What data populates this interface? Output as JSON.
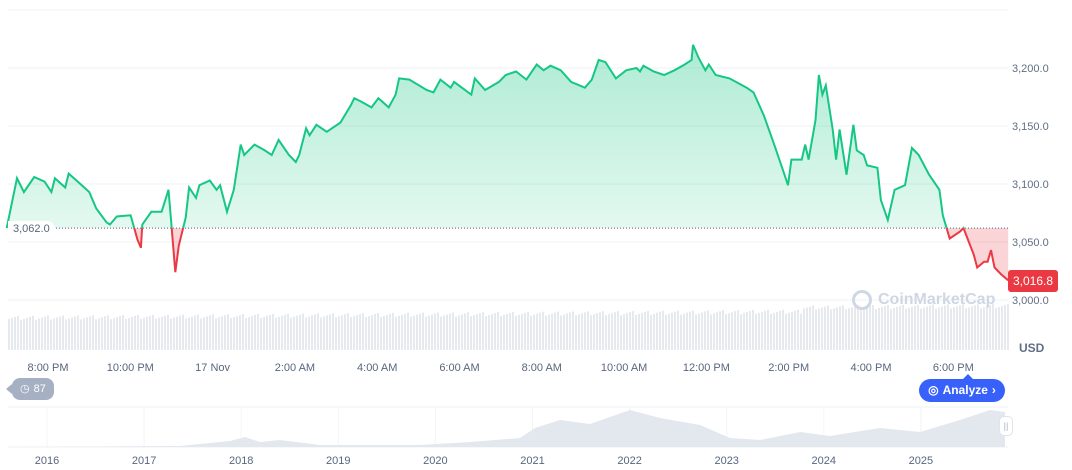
{
  "chart_data": {
    "type": "area",
    "currency": "USD",
    "baseline": 3062.0,
    "baseline_label": "3,062.0",
    "current_price_label": "3,016.8",
    "ylim": [
      3000,
      3225
    ],
    "y_ticks": [
      "3,000.0",
      "3,050.0",
      "3,100.0",
      "3,150.0",
      "3,200.0"
    ],
    "x_ticks": [
      "8:00 PM",
      "10:00 PM",
      "17 Nov",
      "2:00 AM",
      "4:00 AM",
      "6:00 AM",
      "8:00 AM",
      "10:00 AM",
      "12:00 PM",
      "2:00 PM",
      "4:00 PM",
      "6:00 PM"
    ],
    "grid": true,
    "colors": {
      "up": "#16c784",
      "down": "#ea3943",
      "accent": "#3861fb"
    },
    "series": [
      {
        "points": [
          [
            "19:00",
            3062
          ],
          [
            "19:15",
            3105
          ],
          [
            "19:25",
            3093
          ],
          [
            "19:40",
            3106
          ],
          [
            "19:55",
            3102
          ],
          [
            "20:05",
            3093
          ],
          [
            "20:10",
            3105
          ],
          [
            "20:25",
            3097
          ],
          [
            "20:30",
            3109
          ],
          [
            "20:45",
            3101
          ],
          [
            "21:00",
            3093
          ],
          [
            "21:10",
            3079
          ],
          [
            "21:25",
            3067
          ],
          [
            "21:30",
            3065
          ],
          [
            "21:40",
            3072
          ],
          [
            "22:00",
            3073
          ],
          [
            "22:10",
            3052
          ],
          [
            "22:15",
            3045
          ],
          [
            "22:17",
            3065
          ],
          [
            "22:30",
            3076
          ],
          [
            "22:45",
            3076
          ],
          [
            "22:55",
            3095
          ],
          [
            "23:00",
            3060
          ],
          [
            "23:05",
            3024
          ],
          [
            "23:10",
            3047
          ],
          [
            "23:20",
            3071
          ],
          [
            "23:25",
            3097
          ],
          [
            "23:35",
            3088
          ],
          [
            "23:40",
            3099
          ],
          [
            "23:55",
            3103
          ],
          [
            "00:05",
            3095
          ],
          [
            "00:10",
            3099
          ],
          [
            "00:20",
            3076
          ],
          [
            "00:30",
            3095
          ],
          [
            "00:40",
            3134
          ],
          [
            "00:45",
            3125
          ],
          [
            "01:00",
            3134
          ],
          [
            "01:15",
            3129
          ],
          [
            "01:25",
            3125
          ],
          [
            "01:35",
            3138
          ],
          [
            "01:50",
            3125
          ],
          [
            "02:00",
            3119
          ],
          [
            "02:05",
            3125
          ],
          [
            "02:15",
            3148
          ],
          [
            "02:20",
            3142
          ],
          [
            "02:30",
            3151
          ],
          [
            "02:45",
            3145
          ],
          [
            "03:05",
            3153
          ],
          [
            "03:20",
            3168
          ],
          [
            "03:25",
            3174
          ],
          [
            "03:35",
            3171
          ],
          [
            "03:50",
            3166
          ],
          [
            "04:00",
            3174
          ],
          [
            "04:15",
            3166
          ],
          [
            "04:25",
            3177
          ],
          [
            "04:30",
            3191
          ],
          [
            "04:45",
            3190
          ],
          [
            "05:10",
            3181
          ],
          [
            "05:20",
            3179
          ],
          [
            "05:30",
            3190
          ],
          [
            "05:45",
            3183
          ],
          [
            "05:50",
            3188
          ],
          [
            "06:15",
            3177
          ],
          [
            "06:20",
            3191
          ],
          [
            "06:35",
            3181
          ],
          [
            "06:55",
            3188
          ],
          [
            "07:05",
            3194
          ],
          [
            "07:20",
            3197
          ],
          [
            "07:35",
            3190
          ],
          [
            "07:50",
            3203
          ],
          [
            "08:00",
            3198
          ],
          [
            "08:10",
            3202
          ],
          [
            "08:25",
            3198
          ],
          [
            "08:40",
            3188
          ],
          [
            "09:00",
            3183
          ],
          [
            "09:10",
            3190
          ],
          [
            "09:20",
            3207
          ],
          [
            "09:30",
            3205
          ],
          [
            "09:45",
            3191
          ],
          [
            "10:00",
            3198
          ],
          [
            "10:15",
            3200
          ],
          [
            "10:20",
            3197
          ],
          [
            "10:25",
            3202
          ],
          [
            "10:40",
            3197
          ],
          [
            "10:55",
            3194
          ],
          [
            "11:10",
            3198
          ],
          [
            "11:25",
            3203
          ],
          [
            "11:35",
            3207
          ],
          [
            "11:37",
            3220
          ],
          [
            "11:45",
            3209
          ],
          [
            "11:55",
            3198
          ],
          [
            "12:00",
            3203
          ],
          [
            "12:10",
            3194
          ],
          [
            "12:30",
            3191
          ],
          [
            "12:55",
            3183
          ],
          [
            "13:05",
            3179
          ],
          [
            "13:20",
            3159
          ],
          [
            "13:35",
            3134
          ],
          [
            "13:50",
            3108
          ],
          [
            "13:55",
            3099
          ],
          [
            "14:00",
            3121
          ],
          [
            "14:15",
            3121
          ],
          [
            "14:20",
            3134
          ],
          [
            "14:25",
            3121
          ],
          [
            "14:35",
            3155
          ],
          [
            "14:40",
            3194
          ],
          [
            "14:45",
            3177
          ],
          [
            "14:50",
            3185
          ],
          [
            "15:00",
            3147
          ],
          [
            "15:05",
            3121
          ],
          [
            "15:10",
            3147
          ],
          [
            "15:20",
            3108
          ],
          [
            "15:30",
            3151
          ],
          [
            "15:35",
            3129
          ],
          [
            "15:45",
            3125
          ],
          [
            "15:50",
            3116
          ],
          [
            "16:05",
            3114
          ],
          [
            "16:10",
            3086
          ],
          [
            "16:20",
            3069
          ],
          [
            "16:30",
            3095
          ],
          [
            "16:45",
            3099
          ],
          [
            "16:55",
            3131
          ],
          [
            "17:05",
            3125
          ],
          [
            "17:20",
            3108
          ],
          [
            "17:35",
            3095
          ],
          [
            "17:40",
            3073
          ],
          [
            "17:50",
            3053
          ],
          [
            "18:05",
            3059
          ],
          [
            "18:10",
            3062
          ],
          [
            "18:25",
            3039
          ],
          [
            "18:30",
            3028
          ],
          [
            "18:40",
            3033
          ],
          [
            "18:45",
            3033
          ],
          [
            "18:50",
            3043
          ],
          [
            "18:55",
            3028
          ],
          [
            "19:05",
            3022
          ],
          [
            "19:15",
            3017
          ]
        ]
      }
    ],
    "navigator": {
      "years": [
        "2016",
        "2017",
        "2018",
        "2019",
        "2020",
        "2021",
        "2022",
        "2023",
        "2024",
        "2025"
      ]
    }
  },
  "ui": {
    "unit_label": "USD",
    "watermark": "CoinMarketCap",
    "history_badge": "87",
    "analyze_label": "Analyze",
    "handle_glyph": "||"
  }
}
